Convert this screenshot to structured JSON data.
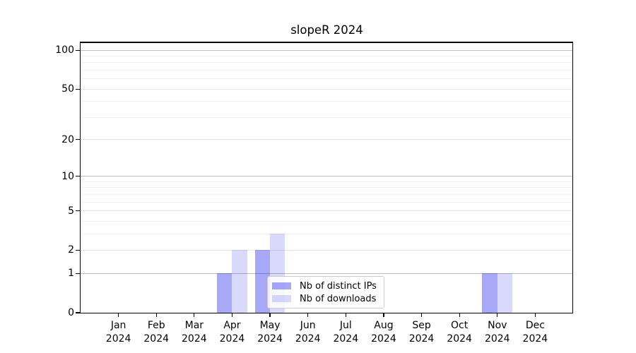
{
  "chart_data": {
    "type": "bar",
    "title": "slopeR 2024",
    "categories": [
      "Jan 2024",
      "Feb 2024",
      "Mar 2024",
      "Apr 2024",
      "May 2024",
      "Jun 2024",
      "Jul 2024",
      "Aug 2024",
      "Sep 2024",
      "Oct 2024",
      "Nov 2024",
      "Dec 2024"
    ],
    "months": [
      "Jan",
      "Feb",
      "Mar",
      "Apr",
      "May",
      "Jun",
      "Jul",
      "Aug",
      "Sep",
      "Oct",
      "Nov",
      "Dec"
    ],
    "year": "2024",
    "series": [
      {
        "name": "Nb of distinct IPs",
        "color": "rgba(0,0,238,0.34)",
        "swatch_hex": "#aeaef5",
        "values": [
          0,
          0,
          0,
          1,
          2,
          0,
          0,
          0,
          0,
          0,
          1,
          0
        ]
      },
      {
        "name": "Nb of downloads",
        "color": "rgba(0,0,238,0.15)",
        "swatch_hex": "#d9d9fa",
        "values": [
          0,
          0,
          0,
          2,
          3,
          0,
          0,
          0,
          0,
          0,
          1,
          0
        ]
      }
    ],
    "yscale": "log1p",
    "ylabel": "",
    "xlabel": "",
    "yticks": [
      0,
      1,
      2,
      5,
      10,
      20,
      50,
      100
    ],
    "yticks_decade": [
      1,
      10,
      100
    ],
    "yticks_minor": [
      3,
      4,
      6,
      7,
      8,
      9,
      30,
      40,
      60,
      70,
      80,
      90
    ],
    "ylim": [
      0,
      115
    ],
    "grid": "on",
    "legend_position": "lower center",
    "colors": {
      "grid_decade": "#bdbdbd",
      "grid_major": "#e6e6e6",
      "grid_minor": "#f1f1f1",
      "spine": "#000000",
      "background": "#ffffff"
    }
  }
}
